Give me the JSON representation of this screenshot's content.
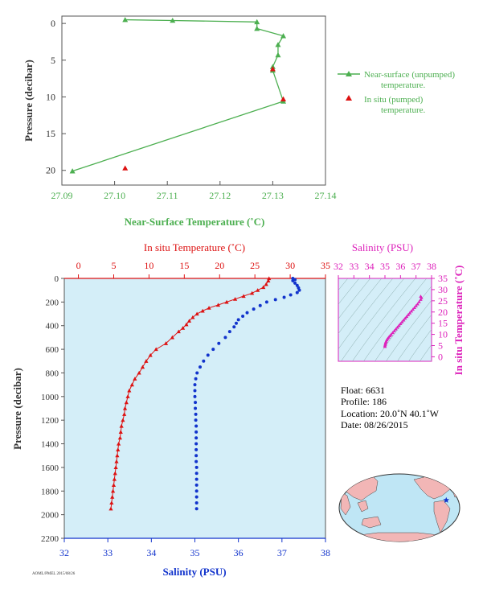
{
  "colors": {
    "green": "#4caf50",
    "red": "#dd1111",
    "blue": "#1133cc",
    "magenta": "#dd22bb",
    "panel_bg": "#d4eef8",
    "axis_dark": "#333333"
  },
  "chart_data": [
    {
      "id": "near-surface",
      "type": "line",
      "xlabel": "Near-Surface Temperature (˚C)",
      "ylabel": "Pressure (decibar)",
      "xlim": [
        27.09,
        27.14
      ],
      "ylim": [
        22,
        -1
      ],
      "x_ticks": [
        "27.09",
        "27.10",
        "27.11",
        "27.12",
        "27.13",
        "27.14"
      ],
      "y_ticks": [
        "0",
        "5",
        "10",
        "15",
        "20"
      ],
      "legend": {
        "placement": "right",
        "unpumped": [
          "Near-surface (unpumped)",
          "temperature."
        ],
        "pumped": [
          "In situ (pumped)",
          "temperature."
        ]
      },
      "series": [
        {
          "name": "Near-surface (unpumped) temperature.",
          "points": [
            [
              27.102,
              -0.5
            ],
            [
              27.111,
              -0.4
            ],
            [
              27.127,
              -0.2
            ],
            [
              27.127,
              0.7
            ],
            [
              27.132,
              1.7
            ],
            [
              27.131,
              2.9
            ],
            [
              27.131,
              4.3
            ],
            [
              27.13,
              5.9
            ],
            [
              27.13,
              6.4
            ],
            [
              27.132,
              10.6
            ],
            [
              27.092,
              20.1
            ]
          ]
        },
        {
          "name": "In situ (pumped) temperature.",
          "points": [
            [
              27.13,
              6.2
            ],
            [
              27.132,
              10.3
            ],
            [
              27.102,
              19.7
            ]
          ]
        }
      ]
    },
    {
      "id": "profile",
      "type": "scatter",
      "top_xlabel": "In situ Temperature (˚C)",
      "bottom_xlabel": "Salinity (PSU)",
      "ylabel": "Pressure (decibar)",
      "temp_lim": [
        -2,
        35
      ],
      "sal_lim": [
        32,
        38
      ],
      "ylim": [
        0,
        2200
      ],
      "temp_ticks": [
        "0",
        "5",
        "10",
        "15",
        "20",
        "25",
        "30",
        "35"
      ],
      "sal_ticks": [
        "32",
        "33",
        "34",
        "35",
        "36",
        "37",
        "38"
      ],
      "y_ticks": [
        "0",
        "200",
        "400",
        "600",
        "800",
        "1000",
        "1200",
        "1400",
        "1600",
        "1800",
        "2000",
        "2200"
      ],
      "temperature_profile": [
        [
          27,
          0
        ],
        [
          26.9,
          20
        ],
        [
          26.6,
          50
        ],
        [
          26.2,
          75
        ],
        [
          25.4,
          100
        ],
        [
          24.6,
          125
        ],
        [
          23.4,
          150
        ],
        [
          22.2,
          175
        ],
        [
          21,
          200
        ],
        [
          19.8,
          225
        ],
        [
          18.5,
          250
        ],
        [
          17.6,
          275
        ],
        [
          16.8,
          300
        ],
        [
          16.2,
          330
        ],
        [
          15.7,
          360
        ],
        [
          15.3,
          390
        ],
        [
          14.8,
          420
        ],
        [
          14.2,
          450
        ],
        [
          13.3,
          500
        ],
        [
          12.4,
          550
        ],
        [
          11,
          600
        ],
        [
          10.2,
          650
        ],
        [
          9.6,
          700
        ],
        [
          9.1,
          750
        ],
        [
          8.6,
          800
        ],
        [
          8,
          850
        ],
        [
          7.6,
          900
        ],
        [
          7.2,
          950
        ],
        [
          7,
          1000
        ],
        [
          6.8,
          1050
        ],
        [
          6.6,
          1100
        ],
        [
          6.5,
          1150
        ],
        [
          6.3,
          1200
        ],
        [
          6.1,
          1250
        ],
        [
          6,
          1300
        ],
        [
          5.9,
          1350
        ],
        [
          5.7,
          1400
        ],
        [
          5.6,
          1450
        ],
        [
          5.5,
          1500
        ],
        [
          5.4,
          1550
        ],
        [
          5.3,
          1600
        ],
        [
          5.2,
          1650
        ],
        [
          5.1,
          1700
        ],
        [
          5,
          1750
        ],
        [
          4.9,
          1800
        ],
        [
          4.8,
          1850
        ],
        [
          4.7,
          1900
        ],
        [
          4.6,
          1950
        ]
      ],
      "salinity_profile": [
        [
          37.25,
          0
        ],
        [
          37.3,
          10
        ],
        [
          37.25,
          20
        ],
        [
          37.3,
          40
        ],
        [
          37.35,
          60
        ],
        [
          37.38,
          80
        ],
        [
          37.4,
          100
        ],
        [
          37.35,
          120
        ],
        [
          37.2,
          140
        ],
        [
          37.05,
          160
        ],
        [
          36.85,
          180
        ],
        [
          36.65,
          200
        ],
        [
          36.5,
          230
        ],
        [
          36.35,
          260
        ],
        [
          36.2,
          290
        ],
        [
          36.1,
          320
        ],
        [
          36,
          350
        ],
        [
          35.95,
          380
        ],
        [
          35.9,
          410
        ],
        [
          35.8,
          450
        ],
        [
          35.7,
          500
        ],
        [
          35.55,
          550
        ],
        [
          35.42,
          600
        ],
        [
          35.3,
          650
        ],
        [
          35.2,
          700
        ],
        [
          35.12,
          750
        ],
        [
          35.05,
          800
        ],
        [
          35.02,
          850
        ],
        [
          35,
          900
        ],
        [
          35,
          950
        ],
        [
          35,
          1000
        ],
        [
          35.01,
          1050
        ],
        [
          35.01,
          1100
        ],
        [
          35.02,
          1150
        ],
        [
          35.02,
          1200
        ],
        [
          35.03,
          1250
        ],
        [
          35.03,
          1300
        ],
        [
          35.03,
          1350
        ],
        [
          35.03,
          1400
        ],
        [
          35.03,
          1450
        ],
        [
          35.03,
          1500
        ],
        [
          35.03,
          1550
        ],
        [
          35.04,
          1600
        ],
        [
          35.04,
          1650
        ],
        [
          35.04,
          1700
        ],
        [
          35.04,
          1750
        ],
        [
          35.04,
          1800
        ],
        [
          35.04,
          1850
        ],
        [
          35.04,
          1900
        ],
        [
          35.04,
          1950
        ]
      ]
    },
    {
      "id": "ts-diagram",
      "type": "scatter",
      "top_xlabel": "Salinity (PSU)",
      "ylabel": "In situ Temperature (˚C)",
      "sal_lim": [
        32,
        38
      ],
      "temp_lim": [
        -2,
        35
      ],
      "sal_ticks": [
        "32",
        "33",
        "34",
        "35",
        "36",
        "37",
        "38"
      ],
      "temp_ticks": [
        "0",
        "5",
        "10",
        "15",
        "20",
        "25",
        "30",
        "35"
      ],
      "points": [
        [
          35.0,
          4.6
        ],
        [
          35.0,
          5
        ],
        [
          35.02,
          5.5
        ],
        [
          35.03,
          6
        ],
        [
          35.05,
          6.5
        ],
        [
          35.08,
          7
        ],
        [
          35.12,
          7.6
        ],
        [
          35.18,
          8.2
        ],
        [
          35.25,
          8.8
        ],
        [
          35.32,
          9.4
        ],
        [
          35.4,
          10
        ],
        [
          35.5,
          10.8
        ],
        [
          35.6,
          11.6
        ],
        [
          35.7,
          12.4
        ],
        [
          35.8,
          13.2
        ],
        [
          35.9,
          14
        ],
        [
          36.0,
          14.8
        ],
        [
          36.1,
          15.6
        ],
        [
          36.2,
          16.4
        ],
        [
          36.3,
          17.2
        ],
        [
          36.4,
          18
        ],
        [
          36.5,
          18.8
        ],
        [
          36.6,
          19.6
        ],
        [
          36.7,
          20.4
        ],
        [
          36.8,
          21.2
        ],
        [
          36.9,
          22
        ],
        [
          37.0,
          22.8
        ],
        [
          37.1,
          23.6
        ],
        [
          37.2,
          24.6
        ],
        [
          37.3,
          25.6
        ],
        [
          37.35,
          26.4
        ],
        [
          37.3,
          27
        ]
      ]
    }
  ],
  "float_info": {
    "float": "Float:  6631",
    "profile": "Profile:  186",
    "location": "Location:  20.0˚N  40.1˚W",
    "date": "Date:  08/26/2015"
  },
  "map": {
    "marker_lon": -40.1,
    "marker_lat": 20.0,
    "marker_icon": "star-icon"
  },
  "footer_code": "AOML/PMEL 2015/08/26"
}
